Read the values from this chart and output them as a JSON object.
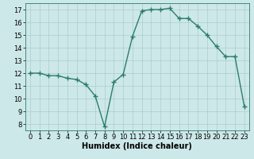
{
  "x": [
    0,
    1,
    2,
    3,
    4,
    5,
    6,
    7,
    8,
    9,
    10,
    11,
    12,
    13,
    14,
    15,
    16,
    17,
    18,
    19,
    20,
    21,
    22,
    23
  ],
  "y": [
    12.0,
    12.0,
    11.8,
    11.8,
    11.6,
    11.5,
    11.1,
    10.2,
    7.8,
    11.3,
    11.9,
    14.9,
    16.9,
    17.0,
    17.0,
    17.1,
    16.3,
    16.3,
    15.7,
    15.0,
    14.1,
    13.3,
    13.3,
    9.4
  ],
  "xlabel": "Humidex (Indice chaleur)",
  "ylabel": "",
  "xlim": [
    -0.5,
    23.5
  ],
  "ylim": [
    7.5,
    17.5
  ],
  "yticks": [
    8,
    9,
    10,
    11,
    12,
    13,
    14,
    15,
    16,
    17
  ],
  "xticks": [
    0,
    1,
    2,
    3,
    4,
    5,
    6,
    7,
    8,
    9,
    10,
    11,
    12,
    13,
    14,
    15,
    16,
    17,
    18,
    19,
    20,
    21,
    22,
    23
  ],
  "line_color": "#2a7d6b",
  "marker": "+",
  "marker_size": 4.0,
  "bg_color": "#cde8e8",
  "grid_color": "#aecccc",
  "label_fontsize": 7,
  "tick_fontsize": 6,
  "line_width": 1.0
}
